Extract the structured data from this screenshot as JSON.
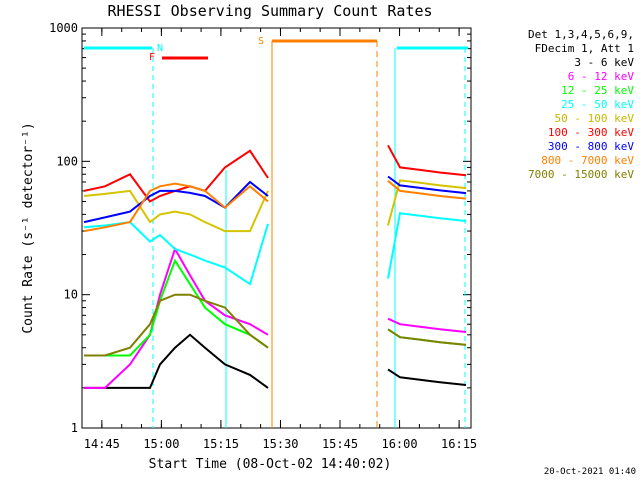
{
  "chart_data": {
    "type": "line",
    "title": "RHESSI Observing Summary Count Rates",
    "xlabel": "Start Time (08-Oct-02 14:40:02)",
    "ylabel": "Count Rate (s⁻¹ detector⁻¹)",
    "yscale": "log",
    "ylim": [
      1,
      1000
    ],
    "xlim_minutes": [
      0,
      98
    ],
    "x_ticks": [
      "14:45",
      "15:00",
      "15:15",
      "15:30",
      "15:45",
      "16:00",
      "16:15"
    ],
    "y_ticks": [
      "1",
      "10",
      "100",
      "1000"
    ],
    "legend_header": [
      "Det 1,3,4,5,6,9,",
      "FDecim 1, Att 1"
    ],
    "series": [
      {
        "name": "3 - 6 keV",
        "color": "#000000",
        "values": [
          2,
          2,
          2,
          2,
          3,
          4,
          5,
          4,
          3,
          2.5,
          2
        ]
      },
      {
        "name": "6 - 12 keV",
        "color": "#ff00ff",
        "values": [
          2,
          2,
          3,
          5,
          10,
          22,
          14,
          9,
          7,
          6,
          5
        ]
      },
      {
        "name": "12 - 25 keV",
        "color": "#00ff00",
        "values": [
          3.5,
          3.5,
          3.5,
          5,
          9,
          18,
          12,
          8,
          6,
          5,
          4
        ]
      },
      {
        "name": "25 - 50 keV",
        "color": "#00ffff",
        "values": [
          32,
          33,
          35,
          25,
          28,
          22,
          20,
          18,
          16,
          12,
          34
        ]
      },
      {
        "name": "50 - 100 keV",
        "color": "#d4c400",
        "values": [
          55,
          57,
          60,
          35,
          40,
          42,
          40,
          35,
          30,
          30,
          60
        ]
      },
      {
        "name": "100 - 300 keV",
        "color": "#ff0000",
        "values": [
          60,
          65,
          80,
          50,
          55,
          60,
          65,
          60,
          90,
          120,
          75
        ]
      },
      {
        "name": "300 - 800 keV",
        "color": "#0000ff",
        "values": [
          35,
          38,
          42,
          55,
          60,
          60,
          58,
          55,
          45,
          70,
          55
        ]
      },
      {
        "name": "800 - 7000 keV",
        "color": "#ff8000",
        "values": [
          30,
          32,
          35,
          60,
          65,
          68,
          65,
          60,
          45,
          65,
          50
        ]
      },
      {
        "name": "7000 - 15000 keV",
        "color": "#808000",
        "values": [
          3.5,
          3.5,
          4,
          6,
          9,
          10,
          10,
          9,
          8,
          5,
          4
        ]
      }
    ],
    "annotations": [
      {
        "label": "N",
        "color": "#00ffff"
      },
      {
        "label": "F",
        "color": "#ff0000"
      },
      {
        "label": "S",
        "color": "#ff8000"
      }
    ],
    "timestamp": "20-Oct-2021 01:40"
  }
}
